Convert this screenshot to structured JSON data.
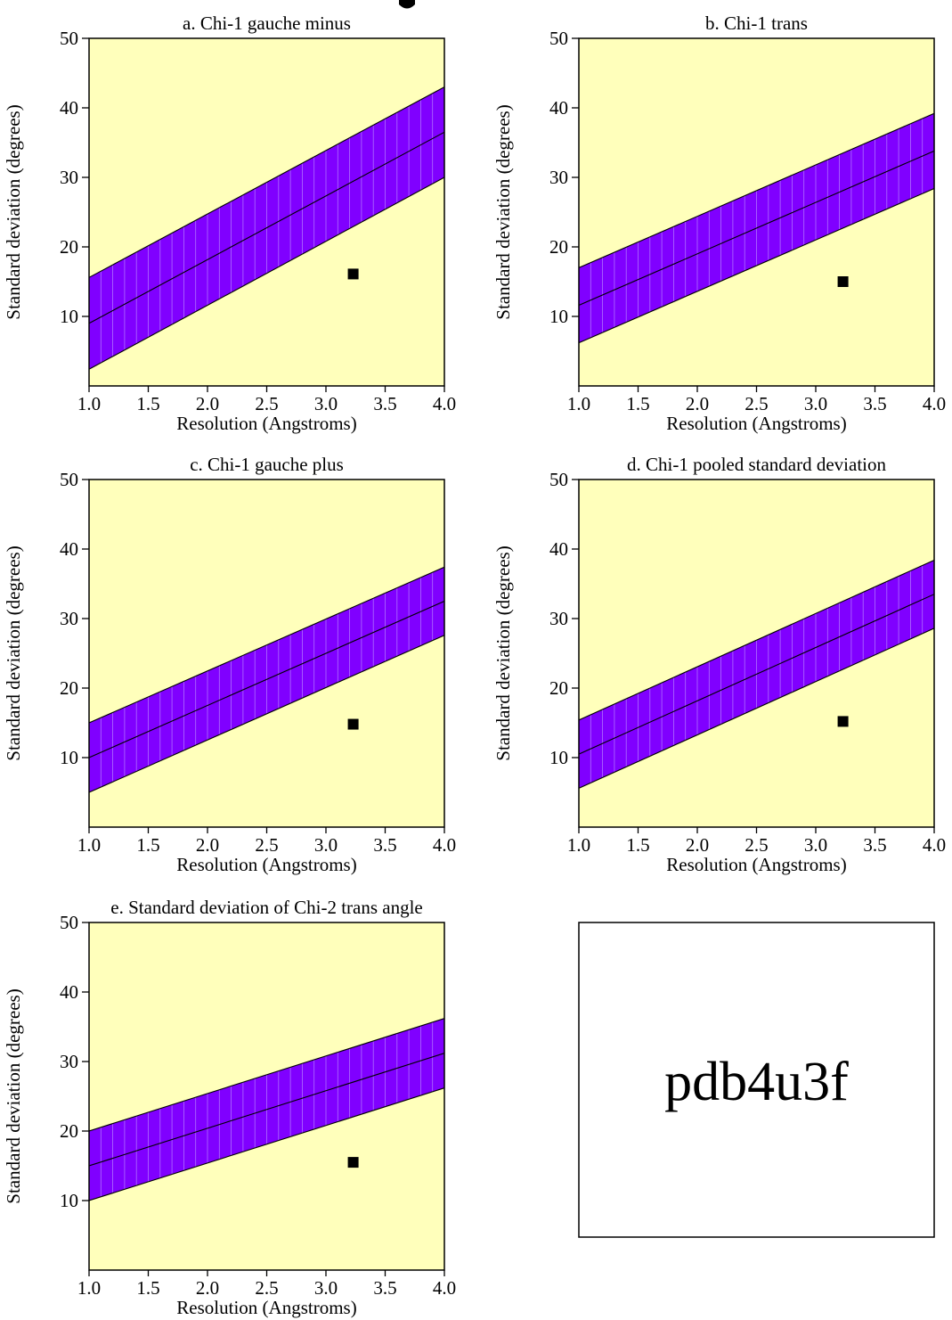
{
  "chart_data": [
    {
      "type": "area",
      "title": "a. Chi-1 gauche minus",
      "xlabel": "Resolution (Angstroms)",
      "ylabel": "Standard deviation (degrees)",
      "xlim": [
        1.0,
        4.0
      ],
      "ylim": [
        0,
        50
      ],
      "x_ticks": [
        "1.0",
        "1.5",
        "2.0",
        "2.5",
        "3.0",
        "3.5",
        "4.0"
      ],
      "y_ticks": [
        "10",
        "20",
        "30",
        "40",
        "50"
      ],
      "band_x": [
        1.0,
        4.0
      ],
      "band_upper": [
        15.6,
        43.0
      ],
      "band_center": [
        9.0,
        36.5
      ],
      "band_lower": [
        2.4,
        30.0
      ],
      "point": {
        "x": 3.23,
        "y": 16.1
      },
      "colors": {
        "background": "#ffffbb",
        "band": "#8000ff",
        "point": "#000000"
      }
    },
    {
      "type": "area",
      "title": "b. Chi-1 trans",
      "xlabel": "Resolution (Angstroms)",
      "ylabel": "Standard deviation (degrees)",
      "xlim": [
        1.0,
        4.0
      ],
      "ylim": [
        0,
        50
      ],
      "x_ticks": [
        "1.0",
        "1.5",
        "2.0",
        "2.5",
        "3.0",
        "3.5",
        "4.0"
      ],
      "y_ticks": [
        "10",
        "20",
        "30",
        "40",
        "50"
      ],
      "band_x": [
        1.0,
        4.0
      ],
      "band_upper": [
        17.0,
        39.2
      ],
      "band_center": [
        11.6,
        33.8
      ],
      "band_lower": [
        6.2,
        28.4
      ],
      "point": {
        "x": 3.23,
        "y": 15.0
      },
      "colors": {
        "background": "#ffffbb",
        "band": "#8000ff",
        "point": "#000000"
      }
    },
    {
      "type": "area",
      "title": "c. Chi-1 gauche plus",
      "xlabel": "Resolution (Angstroms)",
      "ylabel": "Standard deviation (degrees)",
      "xlim": [
        1.0,
        4.0
      ],
      "ylim": [
        0,
        50
      ],
      "x_ticks": [
        "1.0",
        "1.5",
        "2.0",
        "2.5",
        "3.0",
        "3.5",
        "4.0"
      ],
      "y_ticks": [
        "10",
        "20",
        "30",
        "40",
        "50"
      ],
      "band_x": [
        1.0,
        4.0
      ],
      "band_upper": [
        15.0,
        37.4
      ],
      "band_center": [
        10.0,
        32.5
      ],
      "band_lower": [
        5.0,
        27.6
      ],
      "point": {
        "x": 3.23,
        "y": 14.8
      },
      "colors": {
        "background": "#ffffbb",
        "band": "#8000ff",
        "point": "#000000"
      }
    },
    {
      "type": "area",
      "title": "d. Chi-1 pooled standard deviation",
      "xlabel": "Resolution (Angstroms)",
      "ylabel": "Standard deviation (degrees)",
      "xlim": [
        1.0,
        4.0
      ],
      "ylim": [
        0,
        50
      ],
      "x_ticks": [
        "1.0",
        "1.5",
        "2.0",
        "2.5",
        "3.0",
        "3.5",
        "4.0"
      ],
      "y_ticks": [
        "10",
        "20",
        "30",
        "40",
        "50"
      ],
      "band_x": [
        1.0,
        4.0
      ],
      "band_upper": [
        15.4,
        38.4
      ],
      "band_center": [
        10.5,
        33.5
      ],
      "band_lower": [
        5.6,
        28.6
      ],
      "point": {
        "x": 3.23,
        "y": 15.2
      },
      "colors": {
        "background": "#ffffbb",
        "band": "#8000ff",
        "point": "#000000"
      }
    },
    {
      "type": "area",
      "title": "e. Standard deviation of Chi-2 trans angle",
      "xlabel": "Resolution (Angstroms)",
      "ylabel": "Standard deviation (degrees)",
      "xlim": [
        1.0,
        4.0
      ],
      "ylim": [
        0,
        50
      ],
      "x_ticks": [
        "1.0",
        "1.5",
        "2.0",
        "2.5",
        "3.0",
        "3.5",
        "4.0"
      ],
      "y_ticks": [
        "10",
        "20",
        "30",
        "40",
        "50"
      ],
      "band_x": [
        1.0,
        4.0
      ],
      "band_upper": [
        20.0,
        36.2
      ],
      "band_center": [
        15.0,
        31.2
      ],
      "band_lower": [
        10.0,
        26.2
      ],
      "point": {
        "x": 3.23,
        "y": 15.5
      },
      "colors": {
        "background": "#ffffbb",
        "band": "#8000ff",
        "point": "#000000"
      }
    }
  ],
  "stamp_box": {
    "text": "pdb4u3f"
  }
}
